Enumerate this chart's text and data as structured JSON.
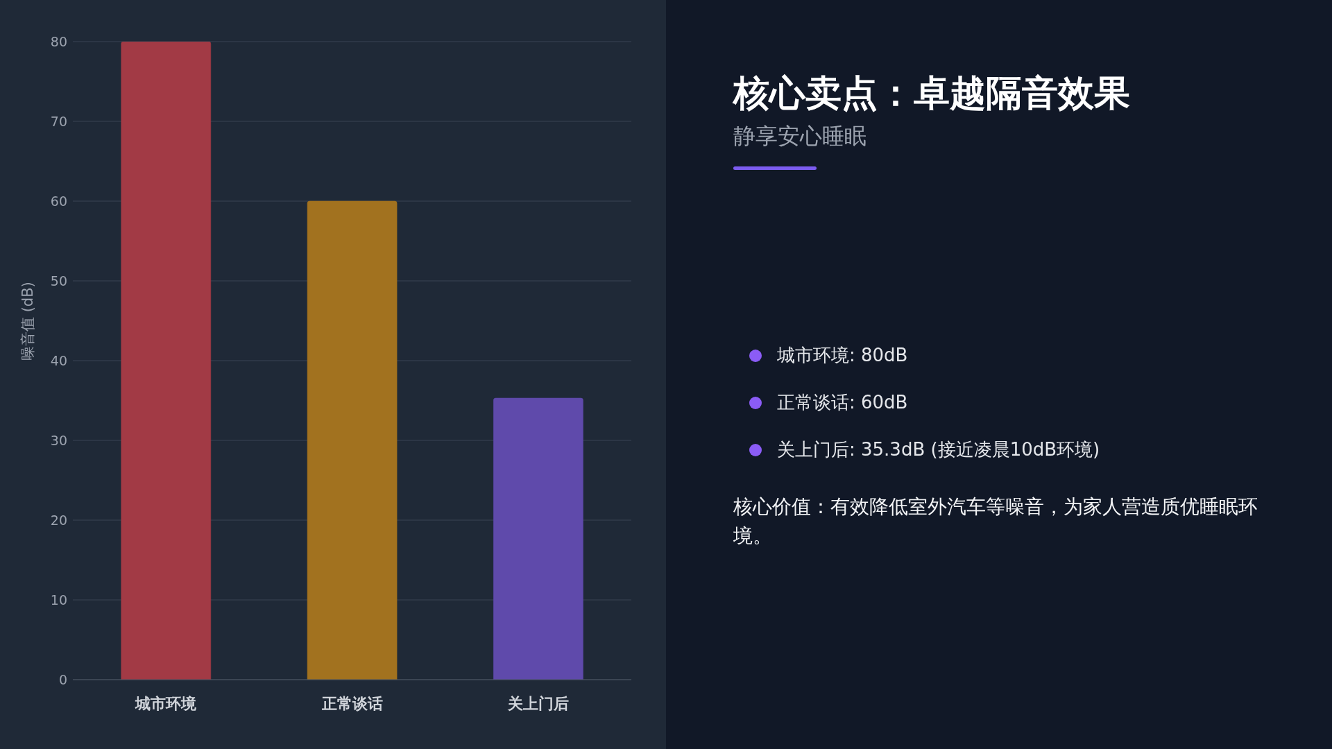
{
  "chart_data": [
    {
      "type": "bar",
      "ylabel": "噪音值 (dB)",
      "categories": [
        "城市环境",
        "正常谈话",
        "关上门后"
      ],
      "values": [
        80,
        60,
        35.3
      ],
      "colors": [
        "#a23a45",
        "#a2721f",
        "#5f4aab"
      ],
      "ylim": [
        0,
        80
      ],
      "yticks": [
        0,
        10,
        20,
        30,
        40,
        50,
        60,
        70,
        80
      ],
      "grid": "y"
    },
    {
      "type": "other",
      "title": "核心卖点：卓越隔音效果",
      "subtitle": "静享安心睡眠",
      "annotations": [
        "城市环境: 80dB",
        "正常谈话: 60dB",
        "关上门后: 35.3dB (接近凌晨10dB环境)",
        "核心价值：有效降低室外汽车等噪音，为家人营造质优睡眠环境。"
      ]
    }
  ]
}
